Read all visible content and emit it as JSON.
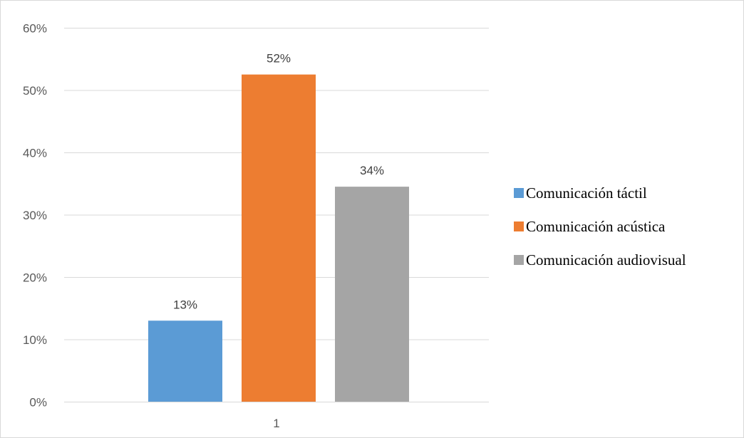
{
  "chart_data": {
    "type": "bar",
    "categories": [
      "1"
    ],
    "series": [
      {
        "name": "Comunicación táctil",
        "values": [
          13
        ],
        "color": "#5b9bd5"
      },
      {
        "name": "Comunicación acústica",
        "values": [
          52.5
        ],
        "color": "#ed7d31"
      },
      {
        "name": "Comunicación audiovisual",
        "values": [
          34.5
        ],
        "color": "#a5a5a5"
      }
    ],
    "data_labels": [
      "13%",
      "52%",
      "34%"
    ],
    "y_ticks": [
      "0%",
      "10%",
      "20%",
      "30%",
      "40%",
      "50%",
      "60%"
    ],
    "ylim": [
      0,
      60
    ],
    "y_tick_values": [
      0,
      10,
      20,
      30,
      40,
      50,
      60
    ],
    "legend_position": "right",
    "grid": true
  }
}
